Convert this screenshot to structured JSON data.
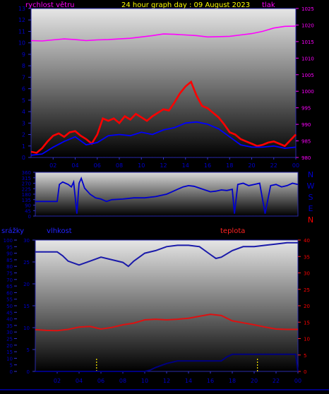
{
  "header": {
    "left_title": "rychlost větru",
    "center_title": "24 hour graph day : 09 August 2023",
    "right_title": "tlak"
  },
  "colors": {
    "background": "#000000",
    "wind_left": "#ff00ff",
    "title_yellow": "#ffff00",
    "pressure": "#ff00ff",
    "wind_speed": "#ff0000",
    "gust": "#0000ff",
    "direction": "#0000cc",
    "humidity": "#1a1aaa",
    "temperature": "#dd1111",
    "rain": "#000080",
    "rain_bars": "#ffee00",
    "axis_blue": "#0000cc",
    "axis_red": "#ff0000"
  },
  "chart_data": [
    {
      "type": "line",
      "name": "wind-and-pressure",
      "x_ticks": [
        "02",
        "04",
        "06",
        "08",
        "10",
        "12",
        "14",
        "16",
        "18",
        "20",
        "22",
        "00"
      ],
      "left_axis": {
        "title": "rychlost větru",
        "ylim": [
          0,
          13
        ],
        "ticks": [
          "0",
          "1",
          "2",
          "3",
          "4",
          "5",
          "6",
          "7",
          "8",
          "9",
          "10",
          "11",
          "12",
          "13"
        ]
      },
      "right_axis": {
        "title": "tlak",
        "ylim": [
          980,
          1025
        ],
        "ticks": [
          "980",
          "985",
          "990",
          "995",
          "1000",
          "1005",
          "1010",
          "1015",
          "1020",
          "1025"
        ]
      },
      "series": [
        {
          "name": "tlak",
          "axis": "right",
          "x": [
            0,
            1,
            2,
            3,
            4,
            5,
            6,
            7,
            8,
            9,
            10,
            11,
            12,
            13,
            14,
            15,
            16,
            17,
            18,
            19,
            20,
            21,
            22,
            23,
            24
          ],
          "values": [
            1015.3,
            1015.2,
            1015.5,
            1015.8,
            1015.6,
            1015.3,
            1015.5,
            1015.6,
            1015.8,
            1016.0,
            1016.4,
            1016.8,
            1017.3,
            1017.2,
            1017.0,
            1016.8,
            1016.4,
            1016.5,
            1016.6,
            1017.0,
            1017.4,
            1018.1,
            1019.1,
            1019.6,
            1019.7
          ]
        },
        {
          "name": "wind_speed",
          "axis": "left",
          "x": [
            0,
            0.5,
            1,
            1.5,
            2,
            2.5,
            3,
            3.5,
            4,
            4.5,
            5,
            5.5,
            6,
            6.5,
            7,
            7.5,
            8,
            8.5,
            9,
            9.5,
            10,
            10.5,
            11,
            11.5,
            12,
            12.5,
            13,
            13.5,
            14,
            14.5,
            15,
            15.5,
            16,
            16.5,
            17,
            17.5,
            18,
            18.5,
            19,
            19.5,
            20,
            20.5,
            21,
            21.5,
            22,
            22.5,
            23,
            23.5,
            24
          ],
          "values": [
            0.5,
            0.4,
            0.8,
            1.4,
            1.9,
            2.1,
            1.8,
            2.2,
            2.3,
            1.9,
            1.6,
            1.2,
            2.0,
            3.4,
            3.2,
            3.4,
            3.0,
            3.6,
            3.3,
            3.8,
            3.5,
            3.2,
            3.6,
            3.9,
            4.2,
            4.1,
            4.8,
            5.6,
            6.2,
            6.6,
            5.4,
            4.5,
            4.3,
            3.9,
            3.5,
            2.9,
            2.2,
            2.0,
            1.6,
            1.4,
            1.2,
            1.0,
            1.1,
            1.3,
            1.4,
            1.2,
            1.0,
            1.5,
            2.0
          ]
        },
        {
          "name": "gust",
          "axis": "left",
          "x": [
            0,
            1,
            2,
            3,
            4,
            5,
            6,
            7,
            8,
            9,
            10,
            11,
            12,
            13,
            14,
            15,
            16,
            17,
            18,
            19,
            20,
            21,
            22,
            23,
            24
          ],
          "values": [
            0.2,
            0.3,
            0.9,
            1.4,
            1.8,
            1.1,
            1.3,
            1.9,
            2.0,
            1.9,
            2.2,
            2.0,
            2.4,
            2.6,
            3.0,
            3.1,
            2.9,
            2.5,
            1.8,
            1.1,
            0.9,
            0.9,
            1.0,
            0.8,
            0.9
          ]
        }
      ]
    },
    {
      "type": "line",
      "name": "wind-direction",
      "x_ticks": [],
      "left_axis": {
        "title": "",
        "ylim": [
          0,
          360
        ],
        "ticks": [
          "0",
          "45",
          "90",
          "135",
          "180",
          "225",
          "270",
          "315",
          "360"
        ]
      },
      "right_axis": {
        "title": "",
        "ticks": [
          "N",
          "W",
          "S",
          "E",
          "N"
        ]
      },
      "series": [
        {
          "name": "direction",
          "x": [
            0,
            0.5,
            1,
            1.5,
            2,
            2.2,
            2.5,
            3,
            3.3,
            3.5,
            3.8,
            4,
            4.2,
            4.5,
            5,
            5.5,
            6,
            6.5,
            7,
            8,
            9,
            10,
            11,
            12,
            12.5,
            13,
            13.5,
            14,
            14.5,
            15,
            15.5,
            16,
            16.5,
            17,
            17.5,
            18,
            18.2,
            18.5,
            19,
            19.5,
            20,
            20.5,
            21,
            21.5,
            22,
            22.5,
            23,
            23.5,
            24
          ],
          "values": [
            120,
            120,
            120,
            120,
            120,
            260,
            280,
            260,
            240,
            280,
            20,
            270,
            310,
            230,
            180,
            150,
            140,
            120,
            135,
            140,
            150,
            150,
            160,
            180,
            200,
            220,
            240,
            250,
            245,
            230,
            215,
            200,
            205,
            215,
            210,
            220,
            20,
            260,
            270,
            250,
            260,
            270,
            20,
            250,
            260,
            240,
            250,
            270,
            260
          ]
        }
      ]
    },
    {
      "type": "line",
      "name": "humidity-temperature-rain",
      "legend": [
        "srážky",
        "vlhkost",
        "teplota"
      ],
      "x_ticks": [
        "02",
        "04",
        "06",
        "08",
        "10",
        "12",
        "14",
        "16",
        "18",
        "20",
        "22",
        "00"
      ],
      "left_axis_rain": {
        "title": "srážky",
        "ylim": [
          0,
          100
        ],
        "ticks": [
          "0",
          "5",
          "10",
          "15",
          "20",
          "25",
          "30",
          "35",
          "40",
          "45",
          "50",
          "55",
          "60",
          "65",
          "70",
          "75",
          "80",
          "85",
          "90",
          "95",
          "100"
        ]
      },
      "left_axis_humidity": {
        "title": "vlhkost",
        "ylim": [
          0,
          30
        ],
        "ticks": [
          "0",
          "5",
          "10",
          "15",
          "20",
          "25",
          "30"
        ]
      },
      "right_axis": {
        "title": "teplota",
        "ylim": [
          0,
          40
        ],
        "ticks": [
          "0",
          "5",
          "10",
          "15",
          "20",
          "25",
          "30",
          "35",
          "40"
        ]
      },
      "series": [
        {
          "name": "vlhkost",
          "x": [
            0,
            1,
            2,
            2.5,
            3,
            4,
            5,
            6,
            7,
            8,
            8.5,
            9,
            10,
            11,
            12,
            13,
            14,
            15,
            16,
            16.5,
            17,
            18,
            19,
            20,
            21,
            22,
            23,
            24
          ],
          "values": [
            91,
            91,
            91,
            88,
            84,
            81,
            84,
            87,
            85,
            83,
            80,
            84,
            90,
            92,
            95,
            96,
            96,
            95,
            89,
            86,
            87,
            92,
            95,
            95,
            96,
            97,
            98,
            98
          ]
        },
        {
          "name": "teplota",
          "x": [
            0,
            1,
            2,
            3,
            4,
            5,
            6,
            7,
            8,
            9,
            10,
            11,
            12,
            13,
            14,
            15,
            16,
            17,
            18,
            19,
            20,
            21,
            22,
            23,
            24
          ],
          "values": [
            12.7,
            12.5,
            12.4,
            12.8,
            13.5,
            13.7,
            12.9,
            13.4,
            14.2,
            14.7,
            15.7,
            15.9,
            15.7,
            15.9,
            16.2,
            16.8,
            17.4,
            17.0,
            15.4,
            14.8,
            14.2,
            13.5,
            12.9,
            12.8,
            12.8
          ]
        },
        {
          "name": "srážky",
          "x": [
            0,
            10,
            10.5,
            11,
            12,
            12.5,
            13,
            14,
            15,
            16,
            17,
            17.5,
            18,
            19,
            20,
            21,
            22,
            23,
            23.8,
            24
          ],
          "values": [
            0,
            0,
            1,
            3,
            6,
            7,
            8,
            8,
            8,
            8,
            8,
            11,
            13,
            13,
            13,
            13,
            13,
            13,
            13,
            0
          ]
        }
      ],
      "rain_events_x": [
        5.6,
        20.3
      ]
    }
  ]
}
